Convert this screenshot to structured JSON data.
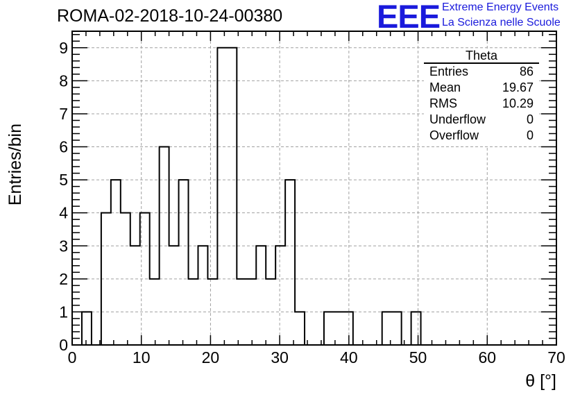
{
  "header": {
    "run_title": "ROMA-02-2018-10-24-00380",
    "logo_text": "EEE",
    "logo_line1": "Extreme Energy Events",
    "logo_line2": "La Scienza nelle Scuole",
    "logo_color": "#1a1adc"
  },
  "stats_box": {
    "title": "Theta",
    "rows": [
      {
        "key": "Entries",
        "value": "86"
      },
      {
        "key": "Mean",
        "value": "19.67"
      },
      {
        "key": "RMS",
        "value": "10.29"
      },
      {
        "key": "Underflow",
        "value": "0"
      },
      {
        "key": "Overflow",
        "value": "0"
      }
    ]
  },
  "chart_data": {
    "type": "bar",
    "xlabel": "θ [°]",
    "ylabel": "Entries/bin",
    "xlim": [
      0,
      70
    ],
    "ylim": [
      0,
      9.5
    ],
    "xticks": [
      "0",
      "10",
      "20",
      "30",
      "40",
      "50",
      "60",
      "70"
    ],
    "yticks": [
      "0",
      "1",
      "2",
      "3",
      "4",
      "5",
      "6",
      "7",
      "8",
      "9"
    ],
    "grid": true,
    "bin_edges": [
      0,
      1.4,
      2.8,
      4.2,
      5.6,
      7.0,
      8.4,
      9.8,
      11.2,
      12.6,
      14.0,
      15.4,
      16.8,
      18.2,
      19.6,
      21.0,
      22.4,
      23.8,
      25.2,
      26.6,
      28.0,
      29.4,
      30.8,
      32.2,
      33.6,
      35.0,
      36.4,
      37.8,
      39.2,
      40.6,
      42.0,
      43.4,
      44.8,
      46.2,
      47.6,
      49.0,
      50.4,
      51.8
    ],
    "values": [
      0,
      1,
      0,
      4,
      5,
      4,
      3,
      4,
      2,
      6,
      3,
      5,
      2,
      3,
      2,
      9,
      9,
      2,
      2,
      3,
      2,
      3,
      5,
      1,
      0,
      0,
      1,
      1,
      1,
      0,
      0,
      0,
      1,
      1,
      0,
      1,
      0
    ]
  }
}
